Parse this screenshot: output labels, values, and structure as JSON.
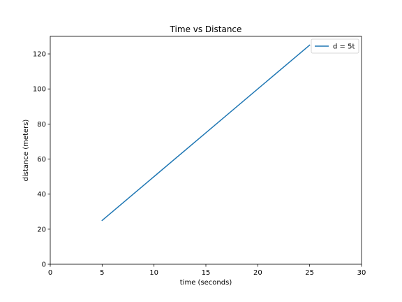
{
  "chart_data": {
    "type": "line",
    "title": "Time vs Distance",
    "xlabel": "time (seconds)",
    "ylabel": "distance (meters)",
    "xlim": [
      0,
      30
    ],
    "ylim": [
      0,
      130
    ],
    "xticks": [
      0,
      5,
      10,
      15,
      20,
      25,
      30
    ],
    "yticks": [
      0,
      20,
      40,
      60,
      80,
      100,
      120
    ],
    "grid": false,
    "legend_position": "top-right",
    "series": [
      {
        "name": "d = 5t",
        "color": "#1f77b4",
        "x": [
          5,
          10,
          15,
          20,
          25
        ],
        "y": [
          25,
          50,
          75,
          100,
          125
        ]
      }
    ]
  }
}
